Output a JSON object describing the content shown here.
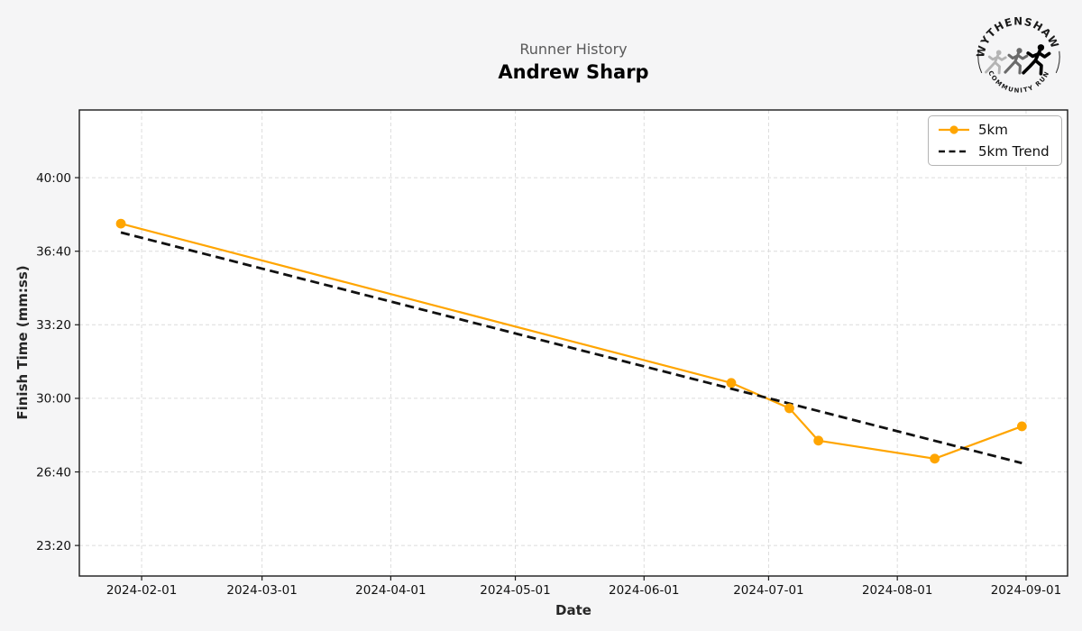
{
  "header": {
    "title": "Runner History",
    "subtitle": "Andrew Sharp"
  },
  "logo": {
    "top_text": "WYTHENSHAWE",
    "bottom_text": "COMMUNITY RUN"
  },
  "chart_data": {
    "type": "line",
    "title": "Runner History",
    "subtitle": "Andrew Sharp",
    "xlabel": "Date",
    "ylabel": "Finish Time (mm:ss)",
    "grid": true,
    "legend_position": "upper right",
    "x_domain": [
      "2024-01-17",
      "2024-09-11"
    ],
    "y_domain_seconds": [
      1317,
      2584
    ],
    "x_ticks": [
      {
        "date": "2024-02-01",
        "label": "2024-02-01"
      },
      {
        "date": "2024-03-01",
        "label": "2024-03-01"
      },
      {
        "date": "2024-04-01",
        "label": "2024-04-01"
      },
      {
        "date": "2024-05-01",
        "label": "2024-05-01"
      },
      {
        "date": "2024-06-01",
        "label": "2024-06-01"
      },
      {
        "date": "2024-07-01",
        "label": "2024-07-01"
      },
      {
        "date": "2024-08-01",
        "label": "2024-08-01"
      },
      {
        "date": "2024-09-01",
        "label": "2024-09-01"
      }
    ],
    "y_ticks": [
      {
        "seconds": 1400,
        "label": "23:20"
      },
      {
        "seconds": 1600,
        "label": "26:40"
      },
      {
        "seconds": 1800,
        "label": "30:00"
      },
      {
        "seconds": 2000,
        "label": "33:20"
      },
      {
        "seconds": 2200,
        "label": "36:40"
      },
      {
        "seconds": 2400,
        "label": "40:00"
      }
    ],
    "series": [
      {
        "name": "5km",
        "color": "#FFA500",
        "line_style": "solid",
        "marker": "circle",
        "points": [
          {
            "date": "2024-01-27",
            "finish_time": "37:55",
            "seconds": 2275
          },
          {
            "date": "2024-06-22",
            "finish_time": "30:42",
            "seconds": 1842
          },
          {
            "date": "2024-07-06",
            "finish_time": "29:33",
            "seconds": 1773
          },
          {
            "date": "2024-07-13",
            "finish_time": "28:05",
            "seconds": 1685
          },
          {
            "date": "2024-08-10",
            "finish_time": "27:16",
            "seconds": 1636
          },
          {
            "date": "2024-08-31",
            "finish_time": "28:44",
            "seconds": 1724
          }
        ]
      },
      {
        "name": "5km Trend",
        "color": "#111111",
        "line_style": "dashed",
        "marker": "none",
        "points": [
          {
            "date": "2024-01-27",
            "finish_time": "37:31",
            "seconds": 2251
          },
          {
            "date": "2024-08-31",
            "finish_time": "27:04",
            "seconds": 1624
          }
        ]
      }
    ],
    "colors": {
      "figure_background": "#f5f5f6",
      "plot_background": "#ffffff",
      "grid_color": "#dcdcdc",
      "spine_color": "#1a1a1a",
      "tick_label_color": "#111111",
      "title_color": "#595959",
      "series_accent": "#FFA500"
    }
  }
}
